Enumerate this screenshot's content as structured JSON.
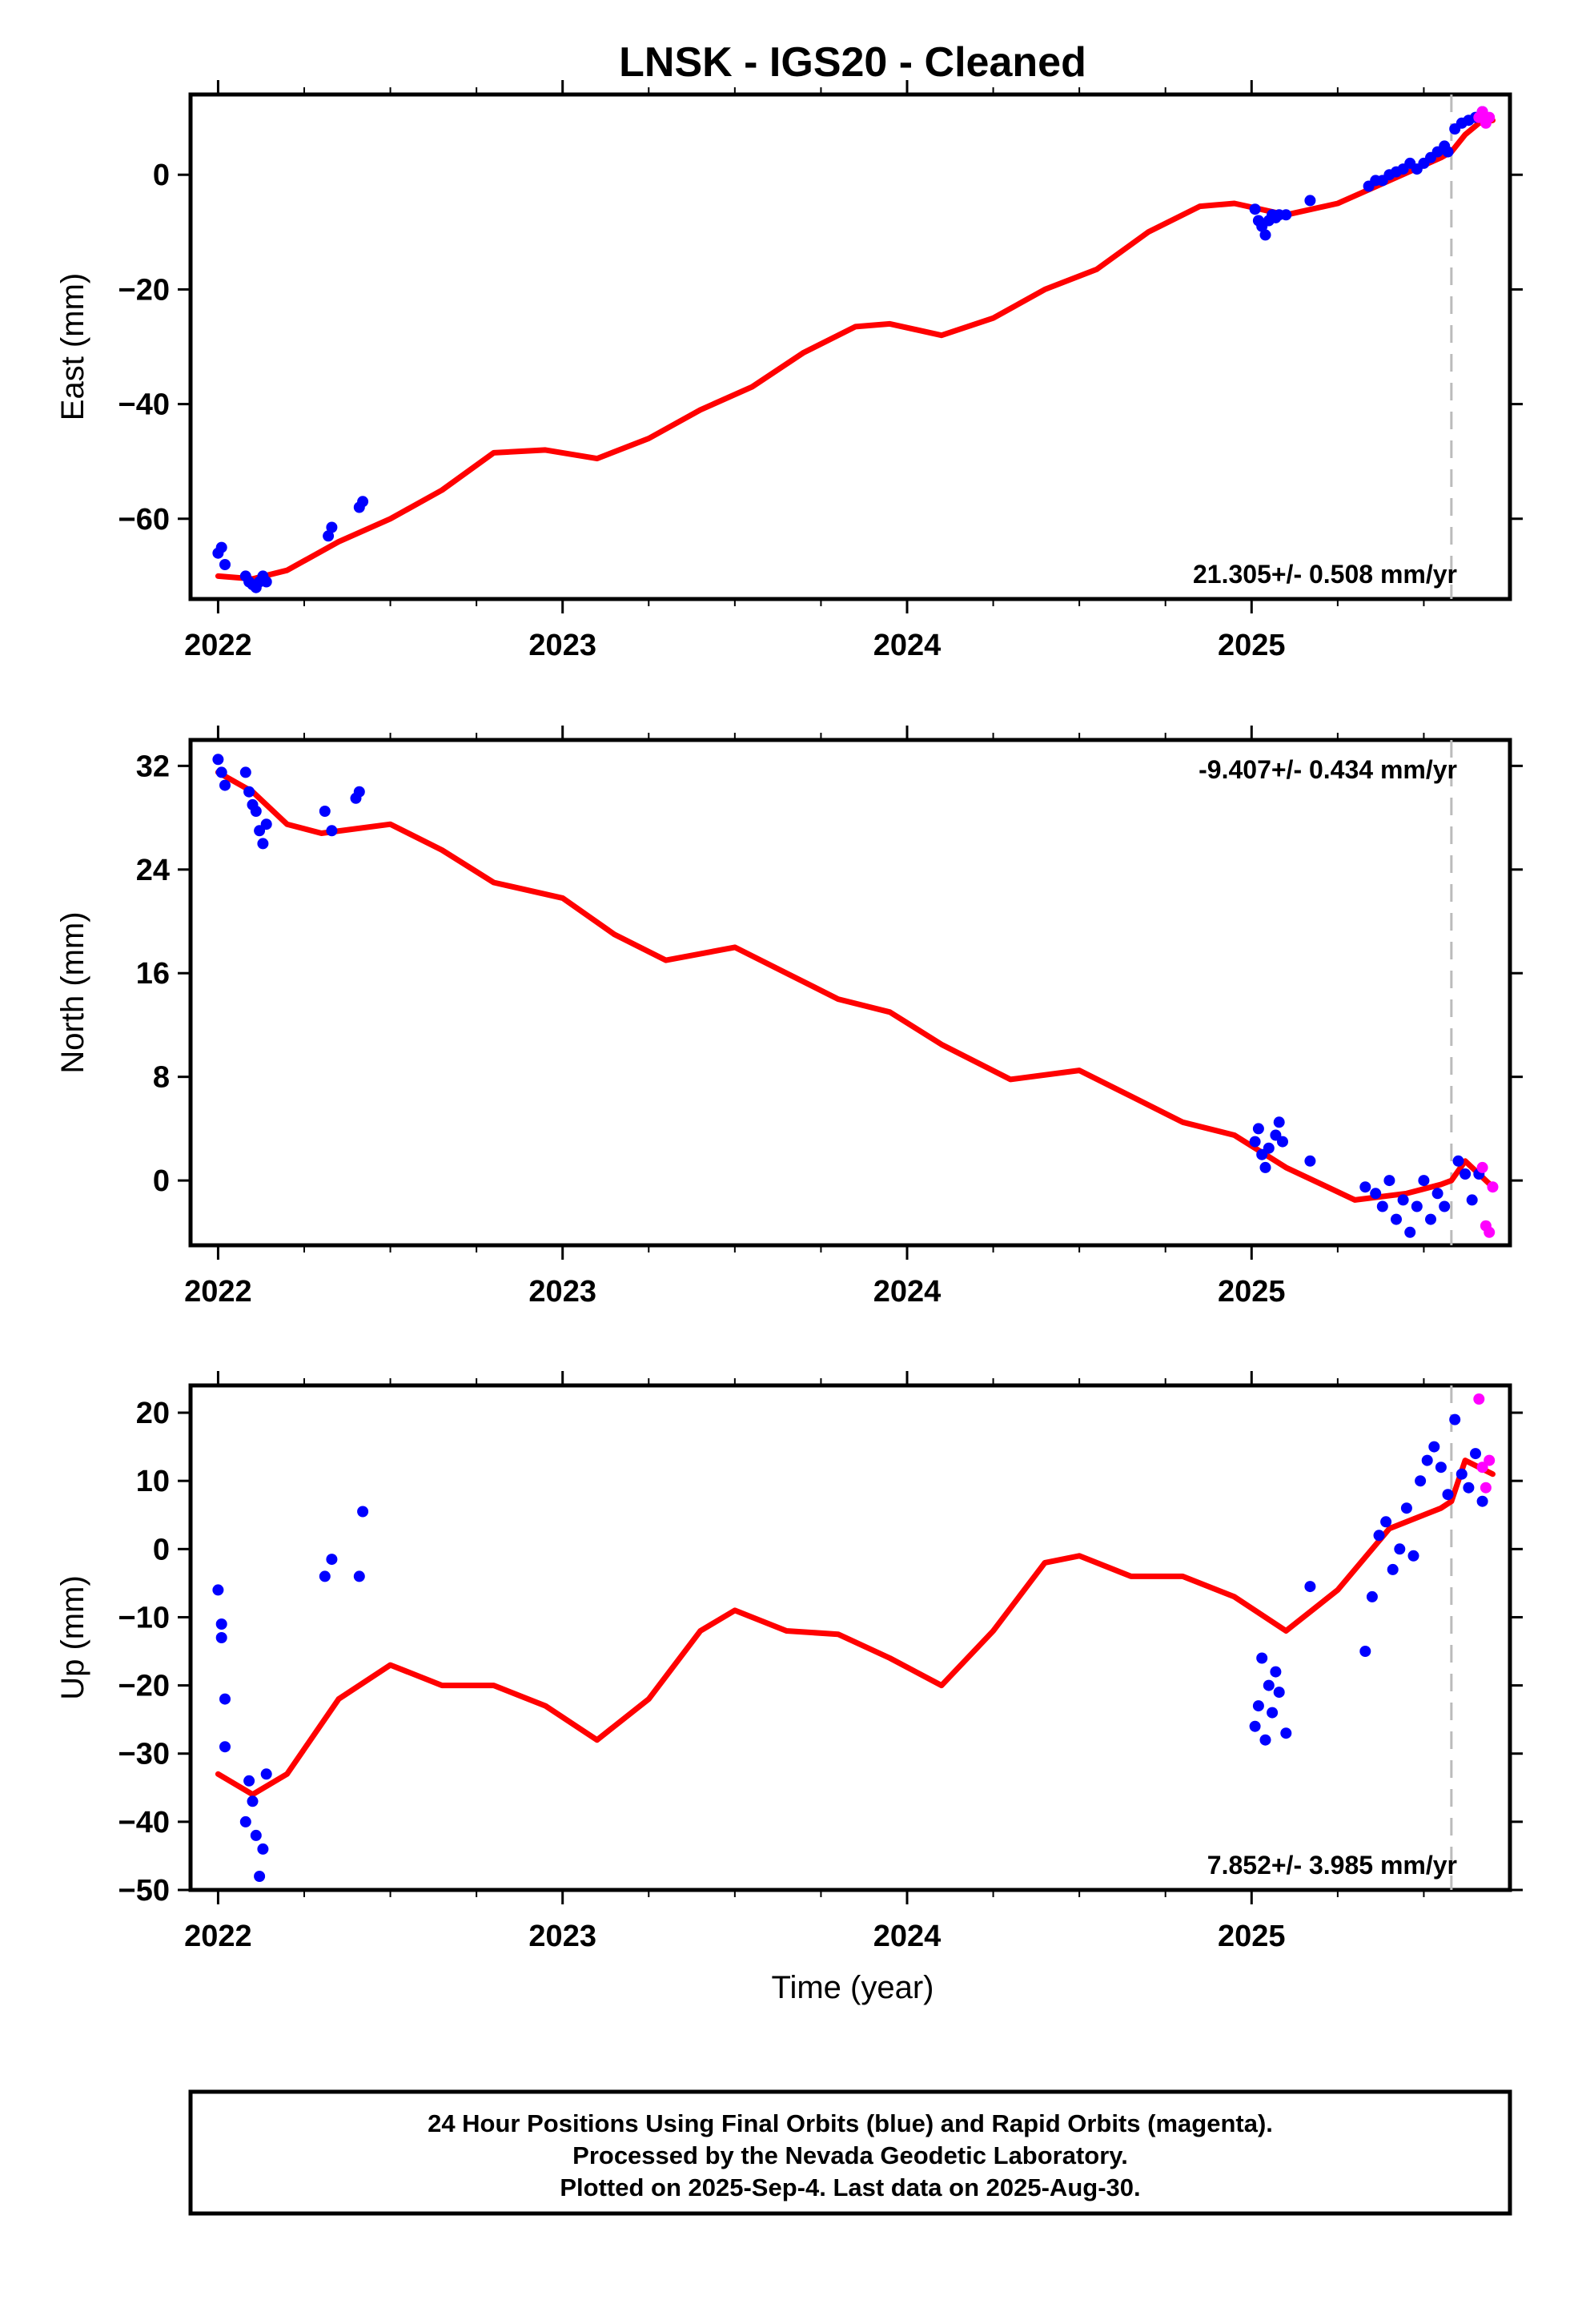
{
  "title": "LNSK  - IGS20 - Cleaned",
  "colors": {
    "final": "#0000ff",
    "rapid": "#ff00ff",
    "model": "#ff0000",
    "dashed": "#bbbbbb"
  },
  "x_tick_labels": [
    "2022",
    "2023",
    "2024",
    "2025"
  ],
  "xlabel": "Time (year)",
  "footer": {
    "line1": "24 Hour Positions Using Final Orbits (blue) and Rapid Orbits (magenta).",
    "line2": "Processed by the Nevada Geodetic Laboratory.",
    "line3": "Plotted on 2025-Sep-4. Last data on 2025-Aug-30."
  },
  "chart_data": [
    {
      "type": "scatter",
      "ylabel": "East (mm)",
      "rate_label": "21.305+/- 0.508 mm/yr",
      "xlim": [
        2021.92,
        2025.75
      ],
      "ylim": [
        -74,
        14
      ],
      "y_ticks": [
        0,
        -20,
        -40,
        -60
      ],
      "y_tick_labels": [
        "0",
        "−20",
        "−40",
        "−60"
      ],
      "dashed_x": 2025.58,
      "series": [
        {
          "kind": "final",
          "x": [
            2022.0,
            2022.01,
            2022.02,
            2022.08,
            2022.09,
            2022.1,
            2022.11,
            2022.12,
            2022.13,
            2022.14,
            2022.32,
            2022.33,
            2022.41,
            2022.42,
            2025.01,
            2025.02,
            2025.03,
            2025.04,
            2025.05,
            2025.06,
            2025.07,
            2025.08,
            2025.1,
            2025.17,
            2025.34,
            2025.36,
            2025.38,
            2025.4,
            2025.42,
            2025.44,
            2025.46,
            2025.48,
            2025.5,
            2025.52,
            2025.54,
            2025.56,
            2025.57,
            2025.59,
            2025.61,
            2025.63,
            2025.65,
            2025.67
          ],
          "y": [
            -66,
            -65,
            -68,
            -70,
            -71,
            -71.5,
            -72,
            -71,
            -70,
            -71,
            -63,
            -61.5,
            -58,
            -57,
            -6,
            -8,
            -9,
            -10.5,
            -8,
            -7,
            -7.5,
            -7,
            -7,
            -4.5,
            -2,
            -1,
            -1,
            0,
            0.5,
            1,
            2,
            1,
            2,
            3,
            4,
            5,
            4,
            8,
            9,
            9.5,
            10,
            11
          ]
        },
        {
          "kind": "rapid",
          "x": [
            2025.66,
            2025.67,
            2025.68,
            2025.69
          ],
          "y": [
            10,
            11,
            9,
            10
          ]
        },
        {
          "kind": "model",
          "x": [
            2022.0,
            2022.1,
            2022.2,
            2022.35,
            2022.5,
            2022.65,
            2022.8,
            2022.95,
            2023.1,
            2023.25,
            2023.4,
            2023.55,
            2023.7,
            2023.85,
            2023.95,
            2024.1,
            2024.25,
            2024.4,
            2024.55,
            2024.7,
            2024.85,
            2024.95,
            2025.1,
            2025.25,
            2025.4,
            2025.55,
            2025.58,
            2025.62,
            2025.66,
            2025.7
          ],
          "y": [
            -70,
            -70.5,
            -69,
            -64,
            -60,
            -55,
            -48.5,
            -48,
            -49.5,
            -46,
            -41,
            -37,
            -31,
            -26.5,
            -26,
            -28,
            -25,
            -20,
            -16.5,
            -10,
            -5.5,
            -5,
            -7,
            -5,
            -1,
            3,
            4,
            7,
            9,
            9.5
          ]
        }
      ]
    },
    {
      "type": "scatter",
      "ylabel": "North (mm)",
      "rate_label": "-9.407+/- 0.434 mm/yr",
      "xlim": [
        2021.92,
        2025.75
      ],
      "ylim": [
        -5,
        34
      ],
      "y_ticks": [
        32,
        24,
        16,
        8,
        0
      ],
      "y_tick_labels": [
        "32",
        "24",
        "16",
        "8",
        "0"
      ],
      "dashed_x": 2025.58,
      "series": [
        {
          "kind": "final",
          "x": [
            2022.0,
            2022.01,
            2022.02,
            2022.08,
            2022.09,
            2022.1,
            2022.11,
            2022.12,
            2022.13,
            2022.14,
            2022.31,
            2022.33,
            2022.4,
            2022.41,
            2025.01,
            2025.02,
            2025.03,
            2025.04,
            2025.05,
            2025.07,
            2025.08,
            2025.09,
            2025.17,
            2025.33,
            2025.36,
            2025.38,
            2025.4,
            2025.42,
            2025.44,
            2025.46,
            2025.48,
            2025.5,
            2025.52,
            2025.54,
            2025.56,
            2025.6,
            2025.62,
            2025.64,
            2025.66
          ],
          "y": [
            32.5,
            31.5,
            30.5,
            31.5,
            30,
            29,
            28.5,
            27,
            26,
            27.5,
            28.5,
            27,
            29.5,
            30,
            3,
            4,
            2,
            1,
            2.5,
            3.5,
            4.5,
            3,
            1.5,
            -0.5,
            -1,
            -2,
            0,
            -3,
            -1.5,
            -4,
            -2,
            0,
            -3,
            -1,
            -2,
            1.5,
            0.5,
            -1.5,
            0.5
          ]
        },
        {
          "kind": "rapid",
          "x": [
            2025.67,
            2025.68,
            2025.69,
            2025.7
          ],
          "y": [
            1,
            -3.5,
            -4,
            -0.5
          ]
        },
        {
          "kind": "model",
          "x": [
            2022.0,
            2022.1,
            2022.2,
            2022.3,
            2022.5,
            2022.65,
            2022.8,
            2023.0,
            2023.15,
            2023.3,
            2023.5,
            2023.65,
            2023.8,
            2023.95,
            2024.1,
            2024.3,
            2024.5,
            2024.65,
            2024.8,
            2024.95,
            2025.1,
            2025.3,
            2025.45,
            2025.55,
            2025.58,
            2025.62,
            2025.7
          ],
          "y": [
            31.5,
            30,
            27.5,
            26.8,
            27.5,
            25.5,
            23,
            21.8,
            19,
            17,
            18,
            16,
            14,
            13,
            10.5,
            7.8,
            8.5,
            6.5,
            4.5,
            3.5,
            1,
            -1.5,
            -1,
            -0.3,
            0,
            1.5,
            -0.5
          ]
        }
      ]
    },
    {
      "type": "scatter",
      "ylabel": "Up (mm)",
      "rate_label": "7.852+/- 3.985 mm/yr",
      "xlim": [
        2021.92,
        2025.75
      ],
      "ylim": [
        -50,
        24
      ],
      "y_ticks": [
        20,
        10,
        0,
        -10,
        -20,
        -30,
        -40,
        -50
      ],
      "y_tick_labels": [
        "20",
        "10",
        "0",
        "−10",
        "−20",
        "−30",
        "−40",
        "−50"
      ],
      "dashed_x": 2025.58,
      "series": [
        {
          "kind": "final",
          "x": [
            2022.0,
            2022.01,
            2022.01,
            2022.02,
            2022.02,
            2022.08,
            2022.09,
            2022.1,
            2022.11,
            2022.12,
            2022.13,
            2022.14,
            2022.31,
            2022.33,
            2022.41,
            2022.42,
            2025.01,
            2025.02,
            2025.03,
            2025.04,
            2025.05,
            2025.06,
            2025.07,
            2025.08,
            2025.1,
            2025.17,
            2025.33,
            2025.35,
            2025.37,
            2025.39,
            2025.41,
            2025.43,
            2025.45,
            2025.47,
            2025.49,
            2025.51,
            2025.53,
            2025.55,
            2025.57,
            2025.59,
            2025.61,
            2025.63,
            2025.65,
            2025.67
          ],
          "y": [
            -6,
            -11,
            -13,
            -22,
            -29,
            -40,
            -34,
            -37,
            -42,
            -48,
            -44,
            -33,
            -4,
            -1.5,
            -4,
            5.5,
            -26,
            -23,
            -16,
            -28,
            -20,
            -24,
            -18,
            -21,
            -27,
            -5.5,
            -15,
            -7,
            2,
            4,
            -3,
            0,
            6,
            -1,
            10,
            13,
            15,
            12,
            8,
            19,
            11,
            9,
            14,
            7
          ]
        },
        {
          "kind": "rapid",
          "x": [
            2025.66,
            2025.67,
            2025.68,
            2025.69
          ],
          "y": [
            22,
            12,
            9,
            13
          ]
        },
        {
          "kind": "model",
          "x": [
            2022.0,
            2022.1,
            2022.2,
            2022.35,
            2022.5,
            2022.65,
            2022.8,
            2022.95,
            2023.1,
            2023.25,
            2023.4,
            2023.5,
            2023.65,
            2023.8,
            2023.95,
            2024.1,
            2024.25,
            2024.4,
            2024.5,
            2024.65,
            2024.8,
            2024.95,
            2025.1,
            2025.25,
            2025.4,
            2025.55,
            2025.58,
            2025.62,
            2025.7
          ],
          "y": [
            -33,
            -36,
            -33,
            -22,
            -17,
            -20,
            -20,
            -23,
            -28,
            -22,
            -12,
            -9,
            -12,
            -12.5,
            -16,
            -20,
            -12,
            -2,
            -1,
            -4,
            -4,
            -7,
            -12,
            -6,
            3,
            6,
            7,
            13,
            11
          ]
        }
      ]
    }
  ]
}
